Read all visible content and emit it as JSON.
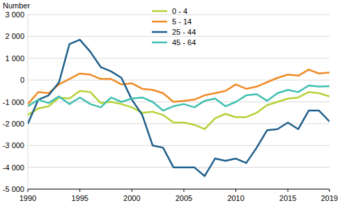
{
  "chart_data": {
    "type": "line",
    "y_label": "Number",
    "x": [
      1990,
      1991,
      1992,
      1993,
      1994,
      1995,
      1996,
      1997,
      1998,
      1999,
      2000,
      2001,
      2002,
      2003,
      2004,
      2005,
      2006,
      2007,
      2008,
      2009,
      2010,
      2011,
      2012,
      2013,
      2014,
      2015,
      2016,
      2017,
      2018,
      2019
    ],
    "xlim": [
      1990,
      2019
    ],
    "xticks": [
      1990,
      1995,
      2000,
      2005,
      2010,
      2015,
      2019
    ],
    "ylim": [
      -5000,
      3000
    ],
    "yticks": [
      {
        "value": -5000,
        "label": "-5 000"
      },
      {
        "value": -4000,
        "label": "-4 000"
      },
      {
        "value": -3000,
        "label": "-3 000"
      },
      {
        "value": -2000,
        "label": "-2 000"
      },
      {
        "value": -1000,
        "label": "-1 000"
      },
      0,
      {
        "value": 1000,
        "label": "1 000"
      },
      {
        "value": 2000,
        "label": "2 000"
      },
      {
        "value": 3000,
        "label": "3 000"
      }
    ],
    "grid": true,
    "legend": "upper center",
    "series": [
      {
        "name": "0 - 4",
        "color": "#b2d235",
        "values": [
          -1600,
          -1300,
          -1200,
          -800,
          -850,
          -500,
          -550,
          -1050,
          -1000,
          -1100,
          -1250,
          -1500,
          -1450,
          -1600,
          -1950,
          -1950,
          -2050,
          -2250,
          -1750,
          -1550,
          -1700,
          -1700,
          -1500,
          -1150,
          -1000,
          -850,
          -800,
          -550,
          -600,
          -750
        ]
      },
      {
        "name": "5 - 14",
        "color": "#f08a24",
        "values": [
          -1100,
          -550,
          -600,
          -200,
          50,
          300,
          250,
          50,
          50,
          -200,
          -150,
          -400,
          -450,
          -600,
          -1000,
          -950,
          -900,
          -700,
          -600,
          -500,
          -200,
          -400,
          -300,
          -100,
          100,
          250,
          200,
          480,
          300,
          350
        ]
      },
      {
        "name": "25 - 44",
        "color": "#1f5f8b",
        "values": [
          -2000,
          -900,
          -700,
          -100,
          1650,
          1850,
          1300,
          600,
          400,
          100,
          -900,
          -1600,
          -3000,
          -3100,
          -4000,
          -4000,
          -4000,
          -4400,
          -3600,
          -3700,
          -3600,
          -3800,
          -3100,
          -2300,
          -2250,
          -1950,
          -2250,
          -1400,
          -1400,
          -1900
        ]
      },
      {
        "name": "45 - 64",
        "color": "#40bfb0",
        "values": [
          -1200,
          -900,
          -1050,
          -750,
          -1100,
          -800,
          -1100,
          -1250,
          -800,
          -1000,
          -850,
          -800,
          -1000,
          -1400,
          -1200,
          -1100,
          -1250,
          -950,
          -850,
          -1200,
          -1000,
          -700,
          -650,
          -950,
          -600,
          -450,
          -550,
          -250,
          -300,
          -280
        ]
      }
    ]
  }
}
